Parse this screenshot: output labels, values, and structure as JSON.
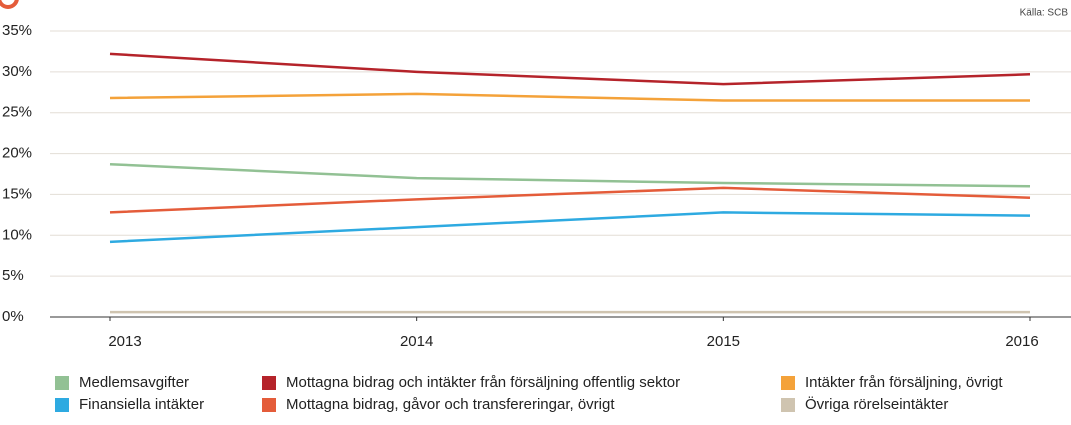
{
  "chart_data": {
    "type": "line",
    "source": "Källa: SCB",
    "x": [
      2013,
      2014,
      2015,
      2016
    ],
    "xlim": [
      2013,
      2016
    ],
    "xticks": [
      2013,
      2014,
      2015,
      2016
    ],
    "ylim": [
      0,
      35
    ],
    "yticks": [
      {
        "value": 0,
        "label": "0%"
      },
      {
        "value": 5,
        "label": "5%"
      },
      {
        "value": 10,
        "label": "10%"
      },
      {
        "value": 15,
        "label": "15%"
      },
      {
        "value": 20,
        "label": "20%"
      },
      {
        "value": 25,
        "label": "25%"
      },
      {
        "value": 30,
        "label": "30%"
      },
      {
        "value": 35,
        "label": "35%"
      }
    ],
    "grid": true,
    "legend": "bottom",
    "series": [
      {
        "name": "Medlemsavgifter",
        "color": "#92c194",
        "values": [
          18.7,
          17.0,
          16.4,
          16.0
        ]
      },
      {
        "name": "Mottagna bidrag och intäkter från försäljning offentlig sektor",
        "color": "#b5232a",
        "values": [
          32.2,
          30.0,
          28.5,
          29.7
        ]
      },
      {
        "name": "Intäkter från försäljning, övrigt",
        "color": "#f4a23a",
        "values": [
          26.8,
          27.3,
          26.5,
          26.5
        ]
      },
      {
        "name": "Finansiella intäkter",
        "color": "#2eaae1",
        "values": [
          9.2,
          11.0,
          12.8,
          12.4
        ]
      },
      {
        "name": "Mottagna bidrag, gåvor och transfereringar, övrigt",
        "color": "#e45c3a",
        "values": [
          12.8,
          14.4,
          15.8,
          14.6
        ]
      },
      {
        "name": "Övriga rörelseintäkter",
        "color": "#cfc4b0",
        "values": [
          0.6,
          0.6,
          0.6,
          0.6
        ]
      }
    ]
  }
}
